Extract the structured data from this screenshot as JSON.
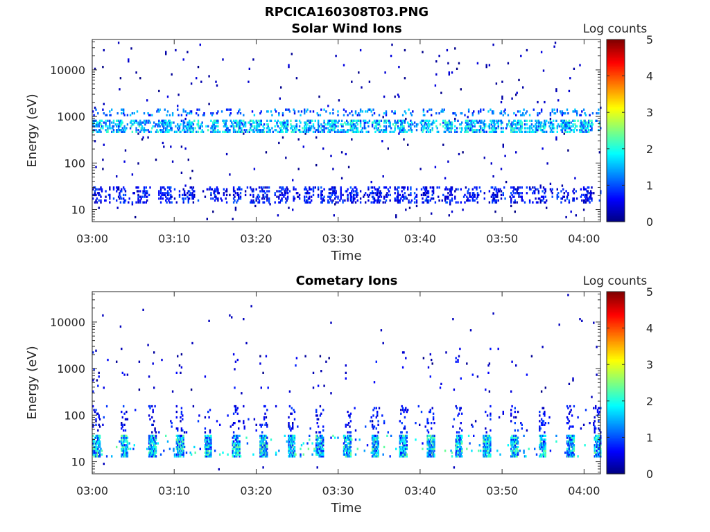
{
  "figure": {
    "filename": "RPCICA160308T03.PNG"
  },
  "colorbar": {
    "label": "Log counts",
    "ticks": [
      0,
      1,
      2,
      3,
      4,
      5
    ],
    "range": [
      0,
      5
    ],
    "colormap": "jet"
  },
  "chart_data": [
    {
      "type": "heatmap",
      "title": "Solar Wind Ions",
      "xlabel": "Time",
      "ylabel": "Energy (eV)",
      "y_scale": "log",
      "x_ticks": [
        "03:00",
        "03:10",
        "03:20",
        "03:30",
        "03:40",
        "03:50",
        "04:00"
      ],
      "y_ticks": [
        10,
        100,
        1000,
        10000
      ],
      "ylim": [
        5.5,
        45000
      ],
      "xlim": [
        "03:00",
        "04:02"
      ],
      "colorbar_label": "Log counts",
      "colorbar_range": [
        0,
        5
      ],
      "features": [
        {
          "band": "main solar wind peak",
          "energy_range_eV": [
            400,
            800
          ],
          "log_counts": [
            1.0,
            2.3
          ]
        },
        {
          "band": "secondary band",
          "energy_range_eV": [
            1000,
            1300
          ],
          "log_counts": [
            0.5,
            1.7
          ]
        },
        {
          "band": "low-energy bursts",
          "energy_range_eV": [
            13,
            30
          ],
          "log_counts": [
            0.2,
            1.2
          ]
        },
        {
          "band": "sparse background",
          "energy_range_eV": [
            6,
            20000
          ],
          "log_counts": [
            0.0,
            0.6
          ]
        }
      ]
    },
    {
      "type": "heatmap",
      "title": "Cometary Ions",
      "xlabel": "Time",
      "ylabel": "Energy (eV)",
      "y_scale": "log",
      "x_ticks": [
        "03:00",
        "03:10",
        "03:20",
        "03:30",
        "03:40",
        "03:50",
        "04:00"
      ],
      "y_ticks": [
        10,
        100,
        1000,
        10000
      ],
      "ylim": [
        5.5,
        45000
      ],
      "xlim": [
        "03:00",
        "04:02"
      ],
      "colorbar_label": "Log counts",
      "colorbar_range": [
        0,
        5
      ],
      "features": [
        {
          "band": "periodic low-energy bursts",
          "energy_range_eV": [
            12,
            35
          ],
          "log_counts": [
            0.5,
            2.8
          ]
        },
        {
          "band": "intermediate energies",
          "energy_range_eV": [
            40,
            150
          ],
          "log_counts": [
            0.2,
            1.2
          ]
        },
        {
          "band": "sparse high energy",
          "energy_range_eV": [
            300,
            2500
          ],
          "log_counts": [
            0.0,
            0.9
          ]
        }
      ]
    }
  ]
}
